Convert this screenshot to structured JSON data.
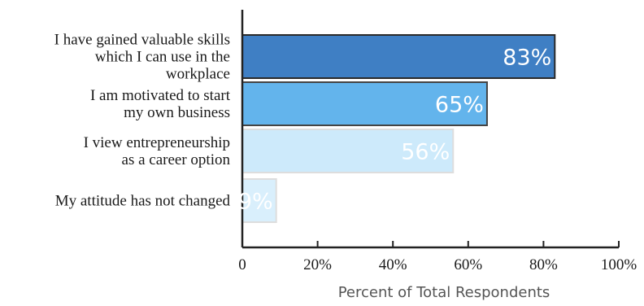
{
  "chart_data": {
    "type": "bar",
    "orientation": "horizontal",
    "categories": [
      [
        "I have gained valuable skills",
        "which I can use in the",
        "workplace"
      ],
      [
        "I am motivated to start",
        "my own business"
      ],
      [
        "I view entrepreneurship",
        "as a career option"
      ],
      [
        "My attitude has not changed"
      ]
    ],
    "values": [
      83,
      65,
      56,
      9
    ],
    "data_labels": [
      "83%",
      "65%",
      "56%",
      "9%"
    ],
    "bar_colors": [
      "#3f7fc4",
      "#63b4ec",
      "#cdeafb",
      "#d9effc"
    ],
    "bar_edge_colors": [
      "#2a2a2a",
      "#444444",
      "#dddddd",
      "#dddddd"
    ],
    "xlim": [
      0,
      100
    ],
    "xticks": [
      0,
      20,
      40,
      60,
      80,
      100
    ],
    "xtick_labels": [
      "0",
      "20%",
      "40%",
      "60%",
      "80%",
      "100%"
    ],
    "xlabel": "Percent of Total Respondents",
    "ylabel": "",
    "title": "",
    "grid": false,
    "legend": false
  }
}
